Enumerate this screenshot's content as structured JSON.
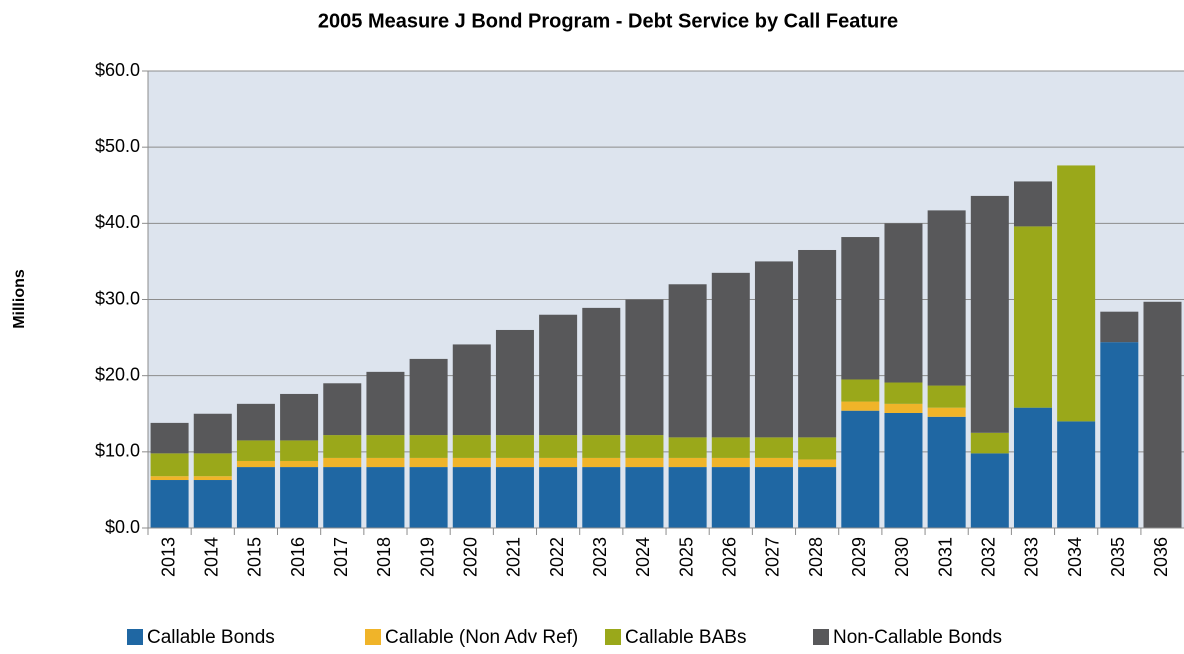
{
  "chart_data": {
    "type": "stacked_bar",
    "title": "2005 Measure J Bond Program - Debt Service by Call Feature",
    "y_label": "Millions",
    "categories": [
      "2013",
      "2014",
      "2015",
      "2016",
      "2017",
      "2018",
      "2019",
      "2020",
      "2021",
      "2022",
      "2023",
      "2024",
      "2025",
      "2026",
      "2027",
      "2028",
      "2029",
      "2030",
      "2031",
      "2032",
      "2033",
      "2034",
      "2035",
      "2036"
    ],
    "series": [
      {
        "name": "Callable Bonds",
        "color": "#1f67a3",
        "values": [
          6.3,
          6.3,
          8.0,
          8.0,
          8.0,
          8.0,
          8.0,
          8.0,
          8.0,
          8.0,
          8.0,
          8.0,
          8.0,
          8.0,
          8.0,
          8.0,
          15.4,
          15.1,
          14.6,
          9.8,
          15.8,
          14.0,
          24.4,
          0
        ]
      },
      {
        "name": "Callable (Non Adv Ref)",
        "color": "#f0b429",
        "values": [
          0.5,
          0.5,
          0.8,
          0.8,
          1.2,
          1.2,
          1.2,
          1.2,
          1.2,
          1.2,
          1.2,
          1.2,
          1.2,
          1.2,
          1.2,
          1.0,
          1.2,
          1.2,
          1.2,
          0,
          0,
          0,
          0,
          0
        ]
      },
      {
        "name": "Callable BABs",
        "color": "#9aa81a",
        "values": [
          3.0,
          3.0,
          2.7,
          2.7,
          3.0,
          3.0,
          3.0,
          3.0,
          3.0,
          3.0,
          3.0,
          3.0,
          2.7,
          2.7,
          2.7,
          2.9,
          2.9,
          2.8,
          2.9,
          2.7,
          23.8,
          33.6,
          0,
          0
        ]
      },
      {
        "name": "Non-Callable Bonds",
        "color": "#58585a",
        "values": [
          4.0,
          5.2,
          4.8,
          6.1,
          6.8,
          8.3,
          10.0,
          11.9,
          13.8,
          15.8,
          16.7,
          17.8,
          20.1,
          21.6,
          23.1,
          24.6,
          18.7,
          20.9,
          23.0,
          31.1,
          5.9,
          0,
          4.0,
          29.7
        ]
      }
    ],
    "ylim": [
      0,
      60
    ],
    "yticks": [
      {
        "value": 0,
        "label": "$0.0"
      },
      {
        "value": 10,
        "label": "$10.0"
      },
      {
        "value": 20,
        "label": "$20.0"
      },
      {
        "value": 30,
        "label": "$30.0"
      },
      {
        "value": 40,
        "label": "$40.0"
      },
      {
        "value": 50,
        "label": "$50.0"
      },
      {
        "value": 60,
        "label": "$60.0"
      }
    ],
    "grid": true,
    "legend": "bottom"
  }
}
